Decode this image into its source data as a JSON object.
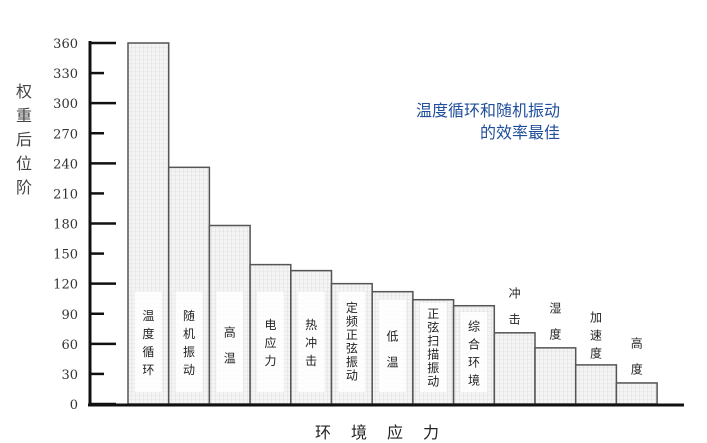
{
  "chart_data": {
    "type": "bar",
    "categories": [
      "温度循环",
      "随机振动",
      "高温",
      "电应力",
      "热冲击",
      "定频正弦振动",
      "低温",
      "正弦扫描振动",
      "综合环境",
      "冲击",
      "湿度",
      "加速度",
      "高度"
    ],
    "values": [
      360,
      236,
      178,
      139,
      133,
      120,
      112,
      104,
      98,
      71,
      56,
      39,
      21
    ],
    "ylabel": "权重后位阶",
    "xlabel": "环境应力",
    "ylim": [
      0,
      360
    ],
    "yticks": [
      0,
      30,
      60,
      90,
      120,
      150,
      180,
      210,
      240,
      270,
      300,
      330,
      360
    ],
    "annotation": [
      "温度循环和随机振动",
      "的效率最佳"
    ],
    "grid": false,
    "colors": {
      "bar_fill": "#f0f0f0",
      "bar_stroke": "#555555",
      "annotation": "#1f4e9a"
    }
  }
}
